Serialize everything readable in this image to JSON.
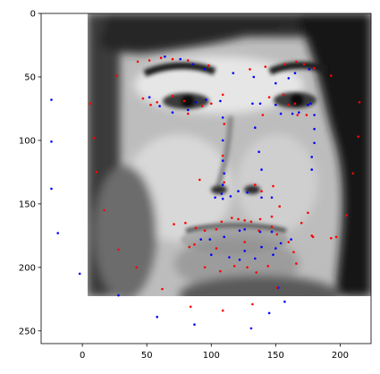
{
  "chart_data": {
    "type": "scatter",
    "title": "",
    "xlabel": "",
    "ylabel": "",
    "xlim": [
      -32,
      224
    ],
    "ylim": [
      260,
      0
    ],
    "x_ticks": [
      0,
      50,
      100,
      150,
      200
    ],
    "y_ticks": [
      0,
      50,
      100,
      150,
      200,
      250
    ],
    "y_inverted": true,
    "grid": false,
    "background_image": {
      "description": "grayscale face photograph",
      "extent": {
        "x": [
          0,
          224
        ],
        "y": [
          224,
          0
        ]
      }
    },
    "series": [
      {
        "color": "#0000ff",
        "points": [
          [
            -24,
            68
          ],
          [
            -24,
            101
          ],
          [
            -24,
            138
          ],
          [
            -19,
            173
          ],
          [
            -2,
            205
          ],
          [
            28,
            222
          ],
          [
            58,
            239
          ],
          [
            87,
            245
          ],
          [
            131,
            248
          ],
          [
            64,
            34
          ],
          [
            76,
            36
          ],
          [
            86,
            40
          ],
          [
            95,
            44
          ],
          [
            117,
            47
          ],
          [
            133,
            50
          ],
          [
            150,
            55
          ],
          [
            160,
            51
          ],
          [
            165,
            47
          ],
          [
            176,
            44
          ],
          [
            180,
            43
          ],
          [
            52,
            66
          ],
          [
            60,
            73
          ],
          [
            70,
            78
          ],
          [
            82,
            76
          ],
          [
            88,
            70
          ],
          [
            96,
            68
          ],
          [
            107,
            69
          ],
          [
            109,
            82
          ],
          [
            109,
            100
          ],
          [
            109,
            116
          ],
          [
            110,
            126
          ],
          [
            109,
            135
          ],
          [
            108,
            142
          ],
          [
            103,
            145
          ],
          [
            109,
            146
          ],
          [
            115,
            144
          ],
          [
            121,
            140
          ],
          [
            128,
            141
          ],
          [
            132,
            71
          ],
          [
            138,
            71
          ],
          [
            150,
            72
          ],
          [
            154,
            79
          ],
          [
            163,
            79
          ],
          [
            168,
            78
          ],
          [
            175,
            72
          ],
          [
            177,
            71
          ],
          [
            180,
            80
          ],
          [
            180,
            91
          ],
          [
            180,
            102
          ],
          [
            178,
            113
          ],
          [
            178,
            123
          ],
          [
            134,
            90
          ],
          [
            137,
            109
          ],
          [
            139,
            123
          ],
          [
            139,
            145
          ],
          [
            147,
            145
          ],
          [
            92,
            178
          ],
          [
            99,
            178
          ],
          [
            110,
            176
          ],
          [
            122,
            171
          ],
          [
            126,
            170
          ],
          [
            138,
            172
          ],
          [
            147,
            172
          ],
          [
            154,
            181
          ],
          [
            162,
            178
          ],
          [
            100,
            190
          ],
          [
            114,
            192
          ],
          [
            122,
            194
          ],
          [
            134,
            193
          ],
          [
            148,
            190
          ],
          [
            150,
            185
          ],
          [
            139,
            184
          ],
          [
            126,
            187
          ],
          [
            152,
            216
          ],
          [
            157,
            227
          ],
          [
            145,
            236
          ]
        ]
      },
      {
        "color": "#ff0000",
        "points": [
          [
            6,
            71
          ],
          [
            9,
            98
          ],
          [
            11,
            125
          ],
          [
            17,
            155
          ],
          [
            28,
            186
          ],
          [
            42,
            200
          ],
          [
            62,
            217
          ],
          [
            84,
            231
          ],
          [
            109,
            234
          ],
          [
            132,
            229
          ],
          [
            151,
            216
          ],
          [
            166,
            197
          ],
          [
            178,
            175
          ],
          [
            193,
            177
          ],
          [
            205,
            159
          ],
          [
            210,
            126
          ],
          [
            214,
            97
          ],
          [
            215,
            70
          ],
          [
            193,
            49
          ],
          [
            180,
            43
          ],
          [
            27,
            49
          ],
          [
            43,
            38
          ],
          [
            52,
            37
          ],
          [
            61,
            35
          ],
          [
            70,
            36
          ],
          [
            82,
            37
          ],
          [
            98,
            41
          ],
          [
            130,
            44
          ],
          [
            142,
            42
          ],
          [
            157,
            40
          ],
          [
            166,
            38
          ],
          [
            172,
            40
          ],
          [
            47,
            67
          ],
          [
            53,
            72
          ],
          [
            58,
            70
          ],
          [
            70,
            65
          ],
          [
            79,
            69
          ],
          [
            82,
            79
          ],
          [
            93,
            73
          ],
          [
            100,
            71
          ],
          [
            109,
            64
          ],
          [
            156,
            64
          ],
          [
            160,
            72
          ],
          [
            167,
            80
          ],
          [
            174,
            80
          ],
          [
            165,
            71
          ],
          [
            145,
            66
          ],
          [
            140,
            80
          ],
          [
            110,
            87
          ],
          [
            109,
            112
          ],
          [
            110,
            133
          ],
          [
            134,
            135
          ],
          [
            139,
            140
          ],
          [
            148,
            136
          ],
          [
            91,
            131
          ],
          [
            71,
            166
          ],
          [
            80,
            165
          ],
          [
            88,
            169
          ],
          [
            95,
            171
          ],
          [
            104,
            170
          ],
          [
            108,
            164
          ],
          [
            116,
            161
          ],
          [
            121,
            162
          ],
          [
            126,
            163
          ],
          [
            131,
            164
          ],
          [
            138,
            162
          ],
          [
            147,
            168
          ],
          [
            151,
            174
          ],
          [
            160,
            180
          ],
          [
            164,
            188
          ],
          [
            144,
            199
          ],
          [
            135,
            204
          ],
          [
            128,
            200
          ],
          [
            118,
            199
          ],
          [
            107,
            203
          ],
          [
            95,
            200
          ],
          [
            83,
            184
          ],
          [
            87,
            182
          ],
          [
            104,
            185
          ],
          [
            126,
            180
          ],
          [
            137,
            171
          ],
          [
            147,
            160
          ],
          [
            153,
            152
          ],
          [
            170,
            165
          ],
          [
            175,
            157
          ],
          [
            179,
            176
          ],
          [
            197,
            176
          ]
        ]
      }
    ]
  }
}
